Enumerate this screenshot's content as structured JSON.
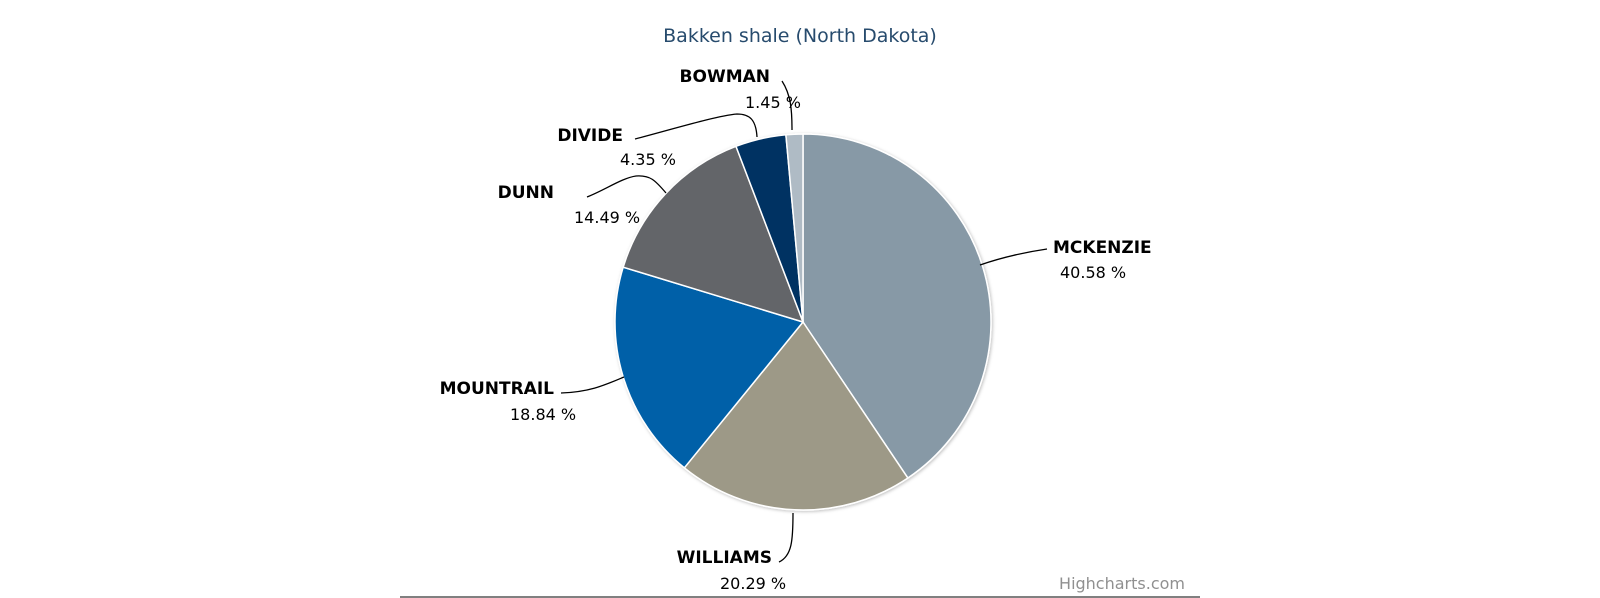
{
  "chart_data": {
    "type": "pie",
    "title": "Bakken shale (North Dakota)",
    "series": [
      {
        "points": [
          {
            "label": "MCKENZIE",
            "value": 40.58,
            "display": "40.58 %",
            "color": "#8799a6"
          },
          {
            "label": "WILLIAMS",
            "value": 20.29,
            "display": "20.29 %",
            "color": "#9d9987"
          },
          {
            "label": "MOUNTRAIL",
            "value": 18.84,
            "display": "18.84 %",
            "color": "#0461a8"
          },
          {
            "label": "DUNN",
            "value": 14.49,
            "display": "14.49 %",
            "color": "#646569"
          },
          {
            "label": "DIVIDE",
            "value": 4.35,
            "display": "4.35 %",
            "color": "#003262"
          },
          {
            "label": "BOWMAN",
            "value": 1.45,
            "display": "1.45 %",
            "color": "#afbbc5"
          }
        ]
      }
    ],
    "legend": "none",
    "data_labels": "outside-with-connectors"
  },
  "credits": "Highcharts.com"
}
